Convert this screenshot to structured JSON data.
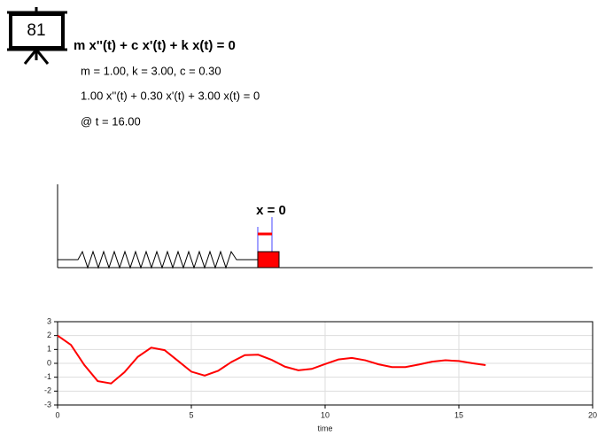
{
  "badge": "81",
  "equation": "m x''(t) + c x'(t) + k x(t) = 0",
  "parameters": "m = 1.00, k = 3.00, c = 0.30",
  "instance": "1.00 x''(t) + 0.30 x'(t) + 3.00 x(t) = 0",
  "time": "@ t = 16.00",
  "marker_label": "x = 0",
  "chart_data": {
    "type": "line",
    "x": [
      0,
      0.5,
      1,
      1.5,
      2,
      2.5,
      3,
      3.5,
      4,
      4.5,
      5,
      5.5,
      6,
      6.5,
      7,
      7.5,
      8,
      8.5,
      9,
      9.5,
      10,
      10.5,
      11,
      11.5,
      12,
      12.5,
      13,
      13.5,
      14,
      14.5,
      15,
      15.5,
      16
    ],
    "values": [
      2.0,
      1.33,
      -0.12,
      -1.28,
      -1.45,
      -0.64,
      0.47,
      1.13,
      0.95,
      0.18,
      -0.6,
      -0.88,
      -0.54,
      0.1,
      0.59,
      0.62,
      0.25,
      -0.24,
      -0.5,
      -0.4,
      -0.05,
      0.28,
      0.39,
      0.22,
      -0.07,
      -0.27,
      -0.27,
      -0.09,
      0.12,
      0.22,
      0.17,
      0.01,
      -0.13
    ],
    "color": "#ff0000",
    "xlim": [
      0,
      20
    ],
    "xticks": [
      0,
      5,
      10,
      15,
      20
    ],
    "ylim": [
      -3,
      3
    ],
    "yticks": [
      -3,
      -2,
      -1,
      0,
      1,
      2,
      3
    ],
    "xlabel": "time",
    "grid": true
  }
}
